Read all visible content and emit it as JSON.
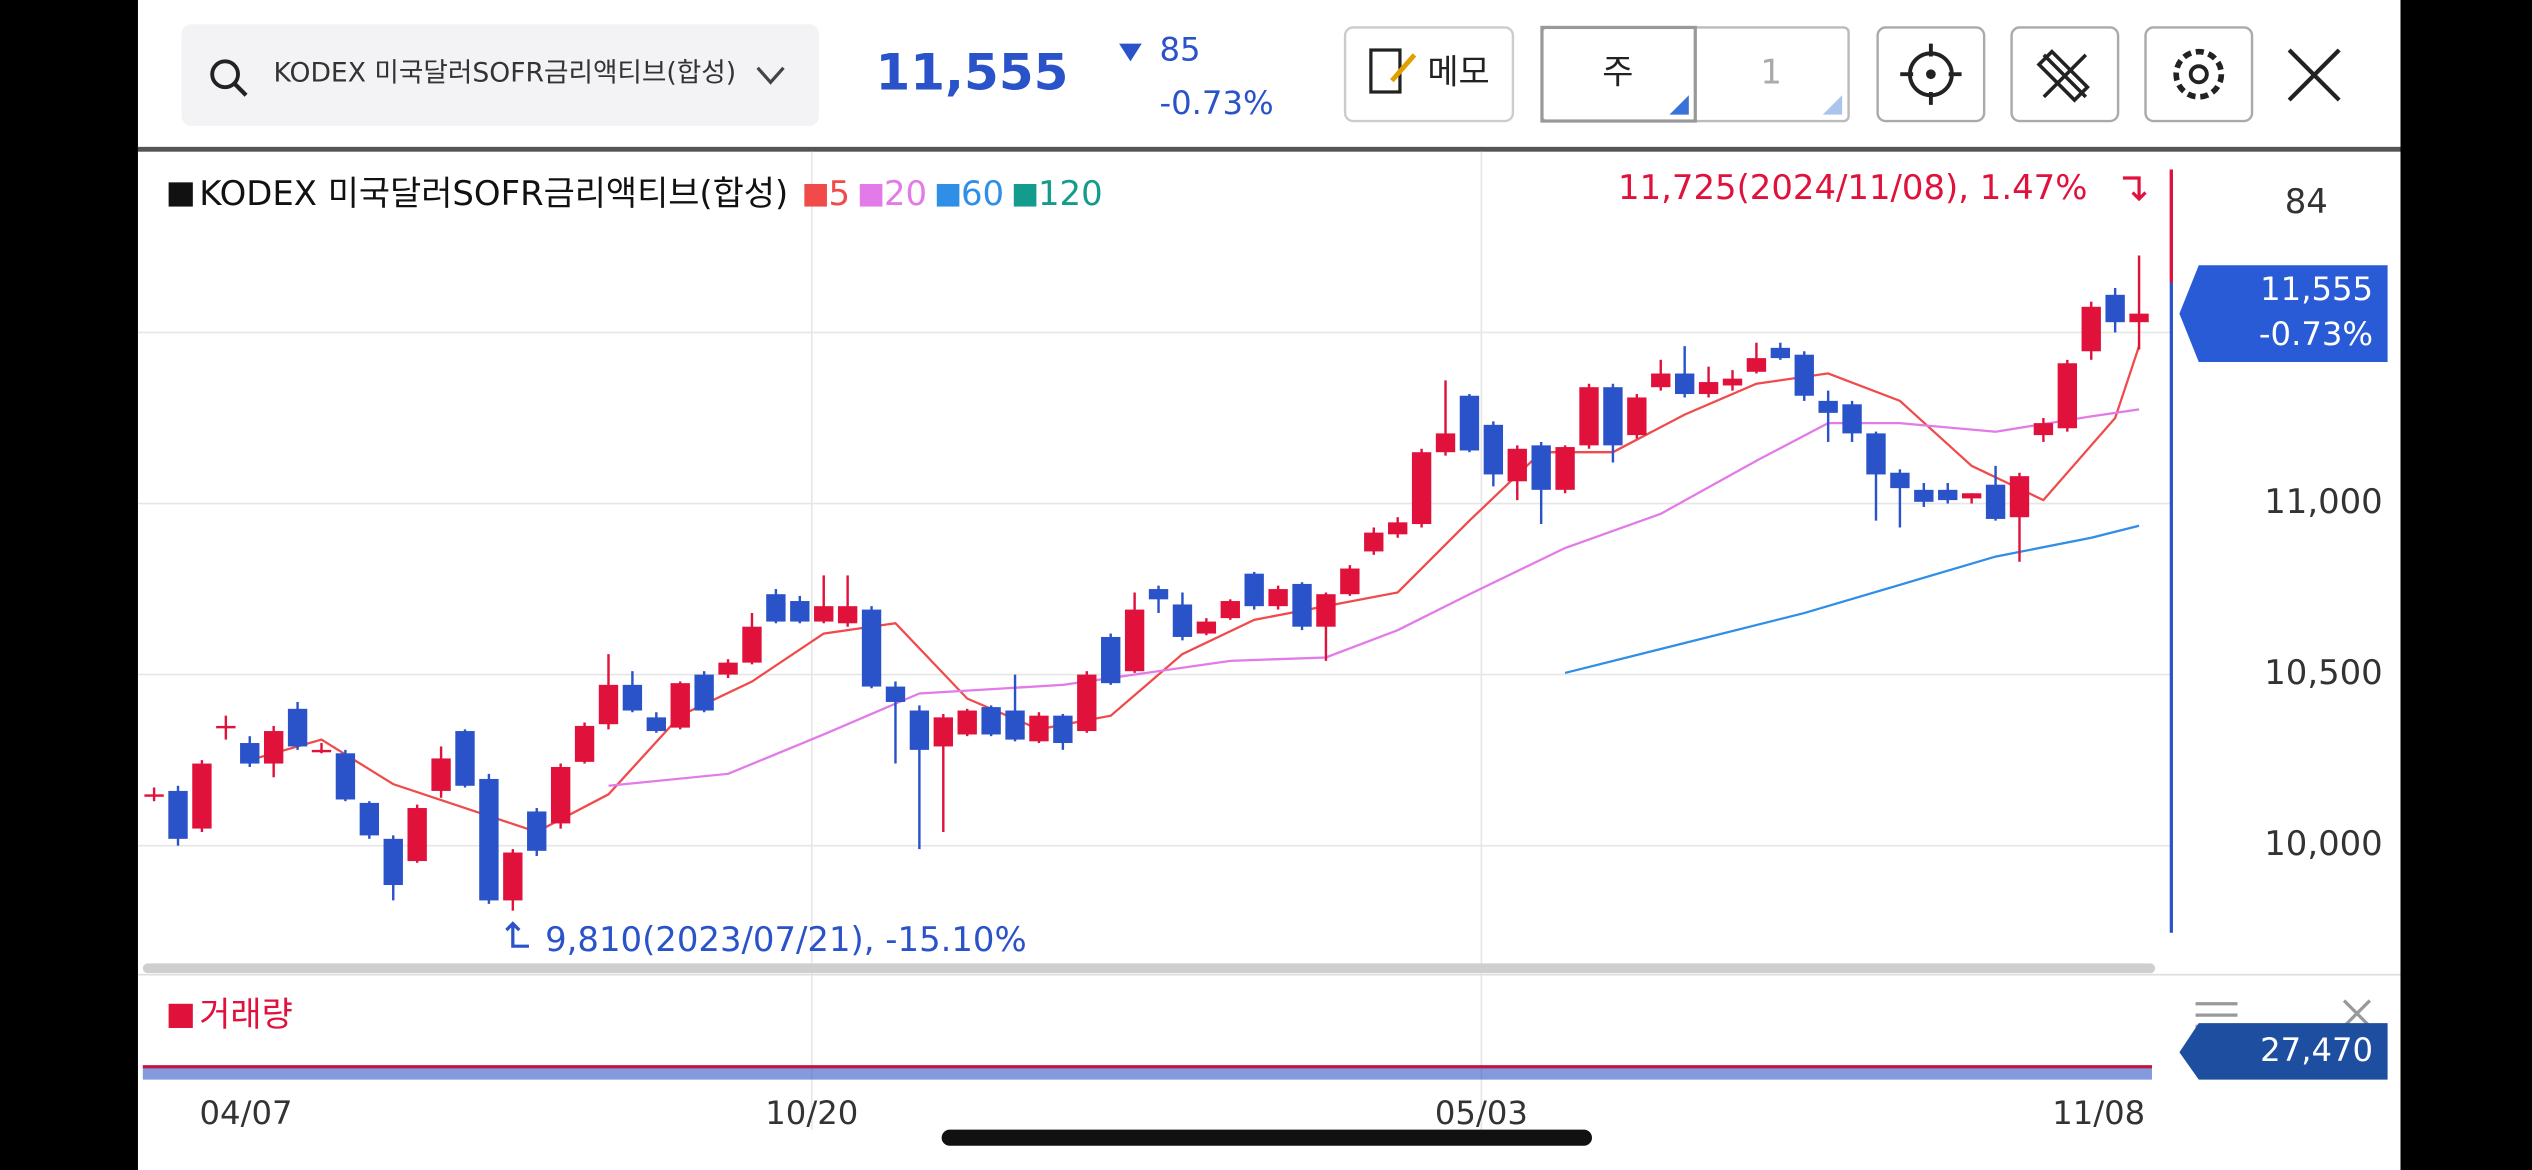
{
  "header": {
    "search": "KODEX 미국달러SOFR금리액티브(합성)",
    "price": "11,555",
    "change": "85",
    "change_pct": "-0.73%",
    "memo": "메모",
    "period": "주",
    "period_count": "1"
  },
  "chart_data": {
    "type": "candlestick",
    "legend_name": "KODEX 미국달러SOFR금리액티브(합성)",
    "up_color": "#e0123c",
    "down_color": "#2a52c9",
    "ylim": [
      9736,
      12000
    ],
    "yticks": [
      {
        "value": 10000,
        "label": "10,000"
      },
      {
        "value": 10500,
        "label": "10,500"
      },
      {
        "value": 11000,
        "label": "11,000"
      },
      11500
    ],
    "top_label": "84",
    "xlim": [
      0,
      83
    ],
    "xticks": [
      {
        "value": 1.9,
        "label": "04/07"
      },
      {
        "value": 27.5,
        "label": "10/20"
      },
      {
        "value": 55.5,
        "label": "05/03"
      },
      {
        "value": 81.5,
        "label": "11/08"
      }
    ],
    "grid": true,
    "candles": [
      [
        10150,
        10170,
        10130,
        10150
      ],
      [
        10160,
        10175,
        10000,
        10020
      ],
      [
        10050,
        10250,
        10040,
        10240
      ],
      [
        10350,
        10380,
        10310,
        10350
      ],
      [
        10300,
        10320,
        10230,
        10240
      ],
      [
        10240,
        10350,
        10200,
        10335
      ],
      [
        10400,
        10420,
        10280,
        10290
      ],
      [
        10280,
        10300,
        10270,
        10280
      ],
      [
        10270,
        10280,
        10130,
        10135
      ],
      [
        10125,
        10130,
        10020,
        10030
      ],
      [
        10020,
        10030,
        9840,
        9885
      ],
      [
        9955,
        10120,
        9950,
        10110
      ],
      [
        10160,
        10290,
        10140,
        10255
      ],
      [
        10335,
        10340,
        10170,
        10175
      ],
      [
        10195,
        10210,
        9830,
        9840
      ],
      [
        9840,
        9990,
        9810,
        9980
      ],
      [
        10100,
        10110,
        9970,
        9985
      ],
      [
        10065,
        10240,
        10050,
        10230
      ],
      [
        10245,
        10360,
        10240,
        10350
      ],
      [
        10355,
        10560,
        10340,
        10470
      ],
      [
        10470,
        10510,
        10390,
        10395
      ],
      [
        10375,
        10390,
        10330,
        10335
      ],
      [
        10345,
        10480,
        10340,
        10475
      ],
      [
        10500,
        10510,
        10390,
        10395
      ],
      [
        10500,
        10545,
        10490,
        10535
      ],
      [
        10535,
        10680,
        10530,
        10640
      ],
      [
        10735,
        10750,
        10650,
        10655
      ],
      [
        10715,
        10730,
        10650,
        10655
      ],
      [
        10655,
        10790,
        10650,
        10700
      ],
      [
        10650,
        10790,
        10640,
        10700
      ],
      [
        10690,
        10700,
        10460,
        10465
      ],
      [
        10465,
        10480,
        10240,
        10420
      ],
      [
        10395,
        10410,
        9990,
        10280
      ],
      [
        10290,
        10385,
        10040,
        10375
      ],
      [
        10325,
        10400,
        10320,
        10395
      ],
      [
        10405,
        10410,
        10320,
        10325
      ],
      [
        10395,
        10500,
        10305,
        10310
      ],
      [
        10305,
        10390,
        10300,
        10380
      ],
      [
        10380,
        10385,
        10280,
        10300
      ],
      [
        10335,
        10510,
        10330,
        10500
      ],
      [
        10610,
        10620,
        10470,
        10475
      ],
      [
        10510,
        10740,
        10505,
        10690
      ],
      [
        10750,
        10760,
        10680,
        10720
      ],
      [
        10705,
        10740,
        10600,
        10610
      ],
      [
        10620,
        10665,
        10615,
        10655
      ],
      [
        10665,
        10720,
        10660,
        10715
      ],
      [
        10795,
        10800,
        10690,
        10700
      ],
      [
        10700,
        10760,
        10690,
        10750
      ],
      [
        10765,
        10770,
        10630,
        10640
      ],
      [
        10640,
        10740,
        10540,
        10735
      ],
      [
        10735,
        10820,
        10730,
        10810
      ],
      [
        10860,
        10930,
        10850,
        10915
      ],
      [
        10910,
        10960,
        10900,
        10945
      ],
      [
        10940,
        11160,
        10930,
        11150
      ],
      [
        11150,
        11360,
        11140,
        11205
      ],
      [
        11315,
        11320,
        11150,
        11155
      ],
      [
        11230,
        11240,
        11050,
        11085
      ],
      [
        11065,
        11170,
        11010,
        11160
      ],
      [
        11170,
        11180,
        10940,
        11040
      ],
      [
        11040,
        11170,
        11030,
        11165
      ],
      [
        11170,
        11350,
        11160,
        11340
      ],
      [
        11340,
        11350,
        11120,
        11170
      ],
      [
        11200,
        11320,
        11190,
        11310
      ],
      [
        11340,
        11420,
        11330,
        11380
      ],
      [
        11380,
        11460,
        11310,
        11320
      ],
      [
        11320,
        11400,
        11310,
        11355
      ],
      [
        11345,
        11390,
        11330,
        11365
      ],
      [
        11385,
        11470,
        11380,
        11425
      ],
      [
        11455,
        11470,
        11420,
        11425
      ],
      [
        11435,
        11445,
        11300,
        11315
      ],
      [
        11300,
        11330,
        11180,
        11265
      ],
      [
        11290,
        11300,
        11180,
        11205
      ],
      [
        11205,
        11210,
        10950,
        11085
      ],
      [
        11090,
        11100,
        10930,
        11045
      ],
      [
        11040,
        11060,
        10990,
        11005
      ],
      [
        11040,
        11060,
        11000,
        11010
      ],
      [
        11015,
        11030,
        11000,
        11030
      ],
      [
        11055,
        11110,
        10950,
        10955
      ],
      [
        10960,
        11090,
        10830,
        11080
      ],
      [
        11200,
        11250,
        11180,
        11235
      ],
      [
        11220,
        11420,
        11210,
        11410
      ],
      [
        11445,
        11590,
        11420,
        11575
      ],
      [
        11610,
        11630,
        11500,
        11530
      ],
      [
        11530,
        11725,
        11450,
        11555
      ]
    ],
    "ma_lines": [
      {
        "name": "5",
        "color": "#f04a4a",
        "x": [
          4,
          7,
          10,
          13,
          16,
          19,
          22,
          25,
          28,
          31,
          34,
          37,
          40,
          43,
          46,
          49,
          52,
          55,
          58,
          61,
          64,
          67,
          70,
          73,
          76,
          79,
          82,
          83
        ],
        "values": [
          10250,
          10310,
          10180,
          10110,
          10040,
          10150,
          10380,
          10480,
          10620,
          10650,
          10430,
          10340,
          10380,
          10560,
          10660,
          10700,
          10740,
          10950,
          11150,
          11150,
          11260,
          11350,
          11380,
          11300,
          11110,
          11010,
          11250,
          11460
        ]
      },
      {
        "name": "20",
        "color": "#e27ae8",
        "x": [
          19,
          24,
          28,
          32,
          38,
          40,
          45,
          49,
          52,
          55,
          59,
          63,
          67,
          70,
          73,
          77,
          81,
          83
        ],
        "values": [
          10175,
          10210,
          10325,
          10445,
          10470,
          10490,
          10540,
          10550,
          10630,
          10735,
          10870,
          10970,
          11125,
          11235,
          11235,
          11210,
          11255,
          11275
        ]
      },
      {
        "name": "60",
        "color": "#2f8ee6",
        "x": [
          59,
          69,
          77,
          81,
          83
        ],
        "values": [
          10505,
          10680,
          10845,
          10900,
          10935
        ]
      },
      {
        "name": "120",
        "color": "#139c8c"
      }
    ],
    "annotations": [
      {
        "text": "11,725(2024/11/08), 1.47%",
        "index": 83,
        "value": 11725
      },
      {
        "text": "9,810(2023/07/21), -15.10%",
        "index": 15,
        "value": 9810
      }
    ],
    "last": {
      "value": 11555,
      "label": "11,555",
      "change": "-0.73%"
    },
    "volume_title": "거래량",
    "volume_last": {
      "value": 27470,
      "label": "27,470"
    }
  }
}
